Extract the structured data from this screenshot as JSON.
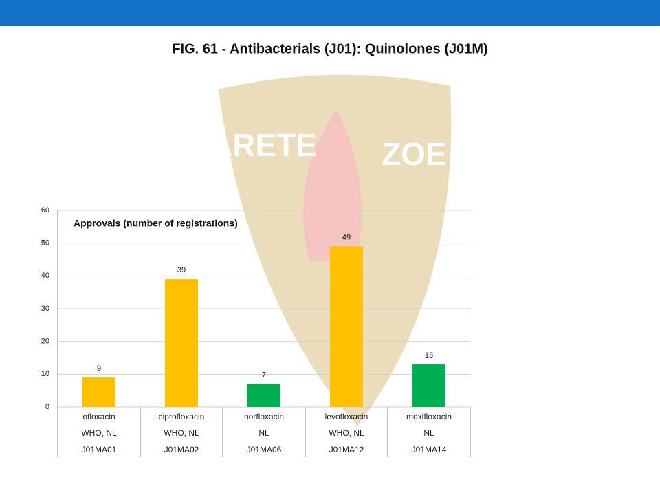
{
  "header": {
    "title": "FIG. 61 - Antibacterials (J01): Quinolones (J01M)"
  },
  "watermark": [
    "ARETE",
    "ZOE"
  ],
  "chart_data": {
    "type": "bar",
    "title": "Approvals (number of registrations)",
    "categories": [
      "ofloxacin",
      "ciprofloxacin",
      "norfloxacin",
      "levofloxacin",
      "moxifloxacin"
    ],
    "category_sources": [
      "WHO, NL",
      "WHO, NL",
      "NL",
      "WHO, NL",
      "NL"
    ],
    "category_codes": [
      "J01MA01",
      "J01MA02",
      "J01MA06",
      "J01MA12",
      "J01MA14"
    ],
    "values": [
      9,
      39,
      7,
      49,
      13
    ],
    "colors": [
      "#ffc000",
      "#ffc000",
      "#00b050",
      "#ffc000",
      "#00b050"
    ],
    "ylim": [
      0,
      60
    ],
    "yticks": [
      0,
      10,
      20,
      30,
      40,
      50,
      60
    ],
    "grid": true
  }
}
